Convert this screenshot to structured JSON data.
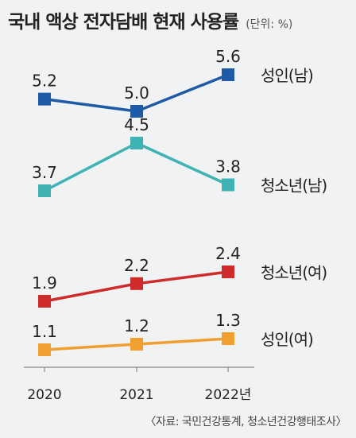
{
  "title": "국내 액상 전자담배 현재 사용률",
  "unit": "(단위: %)",
  "source": "〈자료: 국민건강통계, 청소년건강행태조사〉",
  "chart_data": {
    "type": "line",
    "title": "국내 액상 전자담배 현재 사용률",
    "unit": "%",
    "x": [
      "2020",
      "2021",
      "2022년"
    ],
    "x_tick_labels": [
      "2020",
      "2021",
      "2022년"
    ],
    "legend_placement": "right, at end of each line",
    "grid": false,
    "series": [
      {
        "name": "성인(남)",
        "values": [
          5.2,
          5.0,
          5.6
        ],
        "labels": [
          "5.2",
          "5.0",
          "5.6"
        ],
        "color": "#1f5aa6"
      },
      {
        "name": "청소년(남)",
        "values": [
          3.7,
          4.5,
          3.8
        ],
        "labels": [
          "3.7",
          "4.5",
          "3.8"
        ],
        "color": "#3fb3b3"
      },
      {
        "name": "청소년(여)",
        "values": [
          1.9,
          2.2,
          2.4
        ],
        "labels": [
          "1.9",
          "2.2",
          "2.4"
        ],
        "color": "#d02b2b"
      },
      {
        "name": "성인(여)",
        "values": [
          1.1,
          1.2,
          1.3
        ],
        "labels": [
          "1.1",
          "1.2",
          "1.3"
        ],
        "color": "#f0a030"
      }
    ]
  }
}
